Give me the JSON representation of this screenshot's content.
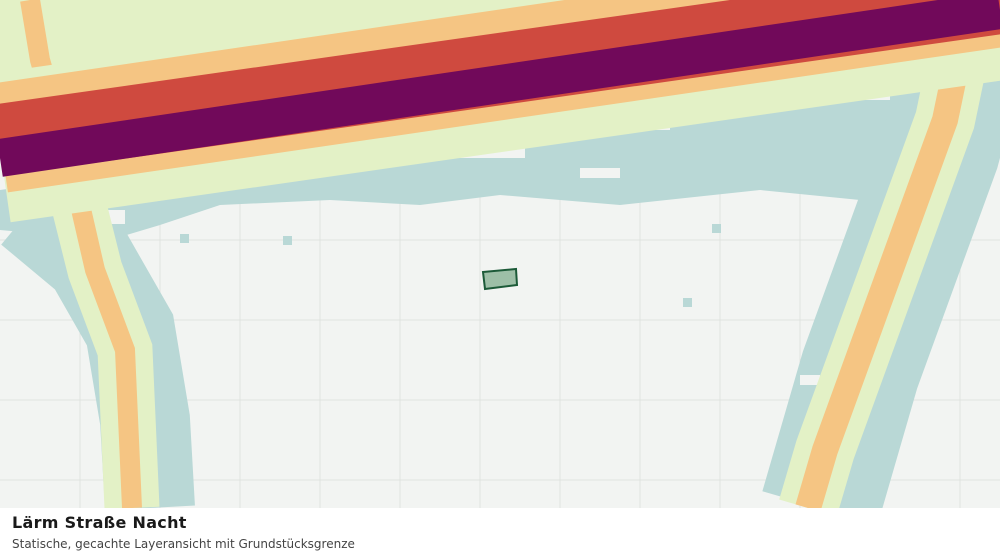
{
  "caption": {
    "title": "Lärm Straße Nacht",
    "subtitle": "Statische, gecachte Layeransicht mit Grundstücksgrenze"
  }
}
